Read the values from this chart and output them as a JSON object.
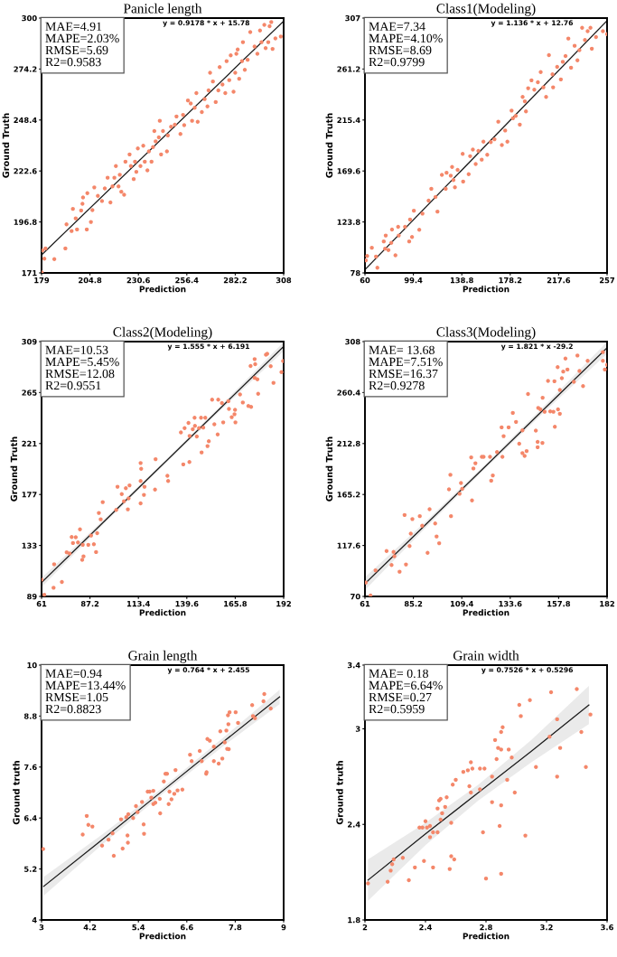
{
  "chart_data": [
    {
      "type": "scatter",
      "title": "Panicle length",
      "xlabel": "Prediction",
      "ylabel": "Ground Truth",
      "marker": "circle",
      "xlim": [
        179,
        308
      ],
      "xticks": [
        179,
        204.8,
        230.6,
        256.4,
        282.2,
        308
      ],
      "ylim": [
        171,
        300
      ],
      "yticks": [
        171,
        196.8,
        222.6,
        248.4,
        274.2,
        300
      ],
      "annotations": [
        "MAE=4.91\nMAPE=2.03%\nRMSE=5.69\nR2=0.9583",
        "y = 0.9178 * x + 15.78"
      ],
      "series": [
        {
          "type": "scatter",
          "color": "#f4876a",
          "x": [
            179.1,
            179.4,
            180.5,
            181.1,
            185.8,
            191.7,
            192.3,
            195,
            195.7,
            197.2,
            197.9,
            200.1,
            200.8,
            201.1,
            203.1,
            203.4,
            205.3,
            206.1,
            207.1,
            209,
            211.2,
            212.7,
            214.2,
            215.7,
            216.8,
            217.8,
            218.6,
            220,
            220.7,
            221.5,
            223,
            223.7,
            225.9,
            226.6,
            228.1,
            228.8,
            229.5,
            230.3,
            231.7,
            233.2,
            234,
            235.4,
            236.2,
            237.6,
            238.4,
            239.1,
            239.8,
            241.5,
            242,
            242.7,
            243.7,
            245.8,
            246.3,
            248,
            250,
            250.9,
            253,
            254.4,
            255,
            257,
            258.5,
            259.2,
            260.6,
            261.5,
            262.2,
            264.4,
            265.9,
            267.4,
            268,
            268.8,
            270.3,
            271.8,
            273.2,
            273.9,
            275.4,
            276.9,
            277.6,
            279,
            279.8,
            281.3,
            282.2,
            282.8,
            283.5,
            284.3,
            285.8,
            286.3,
            287.3,
            288.8,
            290.2,
            292.5,
            294,
            295.4,
            296.2,
            297.7,
            298.4,
            299.8,
            300.5,
            302.1,
            303.6,
            306.5,
            301.4
          ],
          "values": [
            171.3,
            182.4,
            178.2,
            183.4,
            178,
            183.4,
            195.6,
            192.2,
            203.4,
            198.6,
            193,
            202.6,
            206,
            209.2,
            193,
            211.4,
            196.8,
            202.8,
            214.3,
            210,
            207.4,
            213.8,
            219.2,
            206.7,
            214.8,
            219.2,
            225.1,
            214.8,
            220.7,
            212.1,
            210.6,
            227.3,
            231,
            225.1,
            218.5,
            227.3,
            222.2,
            234,
            225.1,
            235.4,
            227.3,
            222.9,
            232.5,
            227.3,
            234.7,
            242.8,
            237.6,
            239.6,
            248,
            231,
            242.8,
            232.5,
            240.6,
            245,
            246,
            250.2,
            241.3,
            251,
            245.8,
            258.3,
            256.8,
            248,
            254.6,
            262,
            247.5,
            252.4,
            259,
            255.3,
            263.4,
            272.3,
            267.9,
            257.5,
            263.4,
            275.2,
            266.4,
            262,
            278.2,
            268.6,
            281.1,
            262.7,
            272.3,
            281.9,
            284.1,
            269.3,
            278.2,
            287.8,
            273.8,
            278.9,
            292.9,
            285.6,
            281.9,
            293.7,
            287.8,
            296.6,
            284.8,
            287.8,
            295.9,
            284.4,
            289.7,
            290.7,
            298
          ]
        },
        {
          "type": "line",
          "color": "#1a1a1a",
          "line_style": "solid",
          "marker": "none",
          "x": [
            179,
            308
          ],
          "values": [
            180.1,
            298.5
          ]
        }
      ]
    },
    {
      "type": "scatter",
      "title": "Class1(Modeling)",
      "xlabel": "Prediction",
      "ylabel": "Ground Truth",
      "marker": "circle",
      "xlim": [
        60,
        257
      ],
      "xticks": [
        60,
        99.4,
        138.8,
        178.2,
        217.6,
        257
      ],
      "ylim": [
        78,
        307
      ],
      "yticks": [
        78,
        123.8,
        169.6,
        215.4,
        261.2,
        307
      ],
      "annotations": [
        "MAE=7.34\nMAPE=4.10%\nRMSE=8.69\nR2=0.9799",
        "y = 1.136 * x + 12.76"
      ],
      "series": [
        {
          "type": "scatter",
          "color": "#f4876a",
          "x": [
            60.7,
            61.8,
            65.6,
            69,
            70.1,
            75.3,
            76.4,
            76.9,
            79.1,
            81.4,
            82,
            84.8,
            87,
            87.5,
            92.6,
            96,
            96.7,
            98.3,
            99.8,
            104.2,
            106.8,
            111.8,
            114,
            117.4,
            119,
            122.6,
            125.7,
            126.4,
            129.8,
            130.9,
            132,
            133.2,
            135.4,
            139.5,
            139.9,
            144.4,
            145.6,
            147.8,
            150.1,
            152.3,
            155,
            156.4,
            159.5,
            162.4,
            165.4,
            168.5,
            171.4,
            174.1,
            175.9,
            179.3,
            180.4,
            182.7,
            186,
            188.3,
            190.1,
            191,
            192.8,
            195.5,
            197.8,
            200.7,
            203,
            205.2,
            207.4,
            209.7,
            212.6,
            213.1,
            216.4,
            219.4,
            221,
            223.2,
            225.5,
            227.7,
            230.6,
            232.9,
            234.5,
            236.7,
            239,
            241.2,
            243.5,
            244.6,
            248,
            253.6,
            257
          ],
          "values": [
            89.3,
            93.2,
            100.6,
            92.7,
            82.7,
            106.3,
            99.8,
            111.6,
            98.5,
            105,
            117,
            93.8,
            119.4,
            111.6,
            119.4,
            106.3,
            126,
            110.3,
            133.9,
            116.8,
            131.3,
            143,
            153.6,
            146.2,
            133.1,
            166.1,
            153.6,
            168,
            165.4,
            173.2,
            161.4,
            154.9,
            170.6,
            185,
            160.1,
            166.7,
            182.9,
            188.9,
            175.9,
            187.6,
            179.8,
            196,
            184.2,
            195.5,
            198.1,
            213.9,
            192.9,
            206,
            196,
            223.9,
            217,
            219.1,
            211.3,
            236.2,
            232.2,
            223.1,
            244,
            251.1,
            242.7,
            249.3,
            258.5,
            244.8,
            236.2,
            273.7,
            256.4,
            244.8,
            263.2,
            251.9,
            267.7,
            272.9,
            288.6,
            262.4,
            282.1,
            269,
            278.2,
            298.3,
            287.3,
            295.2,
            298.3,
            279.5,
            290,
            295.2,
            292.6
          ]
        },
        {
          "type": "line",
          "color": "#1a1a1a",
          "line_style": "solid",
          "marker": "none",
          "x": [
            60,
            257
          ],
          "values": [
            80.9,
            304.7
          ]
        }
      ]
    },
    {
      "type": "scatter",
      "title": "Class2(Modeling)",
      "xlabel": "Prediction",
      "ylabel": "Ground Truth",
      "marker": "circle",
      "xlim": [
        61,
        192
      ],
      "xticks": [
        61,
        87.2,
        113.4,
        139.6,
        165.8,
        192
      ],
      "ylim": [
        89,
        309
      ],
      "yticks": [
        89,
        133,
        177,
        221,
        265,
        309
      ],
      "annotations": [
        "MAE=10.53\nMAPE=5.45%\nRMSE=12.08\nR2=0.9551",
        "y = 1.555 * x + 6.191"
      ],
      "series": [
        {
          "type": "scatter",
          "color": "#f4876a",
          "x": [
            61,
            62.5,
            67.5,
            67.8,
            72,
            74.6,
            76.2,
            77.3,
            78,
            79.5,
            80.7,
            81.8,
            83,
            83.7,
            83.3,
            86.3,
            87.8,
            89.3,
            90.5,
            91.1,
            92,
            93,
            94.1,
            101.4,
            102.1,
            104.4,
            105.6,
            106.6,
            107.7,
            108.1,
            108.6,
            114.6,
            114.9,
            114.6,
            114.6,
            116.4,
            116.7,
            122.7,
            122.4,
            129.1,
            129.5,
            136.4,
            137.7,
            138.4,
            140.5,
            141,
            141.1,
            142.8,
            143.8,
            144,
            145,
            146.2,
            147.3,
            147.6,
            148.5,
            149.6,
            150.8,
            151.5,
            153.3,
            154.5,
            156.3,
            156.6,
            158.6,
            159.3,
            162.1,
            162.4,
            163.9,
            165.4,
            165.7,
            165.9,
            168.4,
            169.9,
            172.9,
            174.4,
            174.1,
            176.3,
            176.6,
            176.3,
            177.8,
            178.2,
            182.4,
            183.1,
            185,
            186.5,
            190.8,
            191.7
          ],
          "values": [
            103.5,
            90.5,
            96.5,
            116.8,
            101.5,
            127.1,
            126.1,
            140.3,
            135.1,
            140.1,
            135.6,
            146.9,
            120.6,
            123.6,
            133.6,
            133.6,
            141.6,
            134.1,
            127.3,
            143.6,
            161.1,
            155.6,
            170.4,
            163.7,
            183.7,
            177.4,
            171.2,
            182.4,
            164.2,
            173.7,
            184.9,
            204.2,
            199.2,
            188.7,
            169.4,
            176.7,
            183.7,
            207.5,
            181.2,
            193.2,
            188.7,
            230.6,
            203,
            234.3,
            238.8,
            205,
            227.6,
            233.3,
            243.3,
            236.3,
            227.1,
            234.3,
            243.3,
            213.3,
            234.8,
            243.3,
            218.8,
            223,
            258.9,
            237.6,
            228.8,
            258.9,
            255.9,
            239.3,
            257.6,
            250.9,
            243.8,
            246.3,
            250.1,
            239.3,
            263.4,
            256.4,
            253.4,
            252.6,
            287.9,
            293.9,
            289.5,
            277.7,
            276.4,
            263.9,
            297.7,
            298.5,
            287.7,
            273.4,
            282.7,
            292.2
          ]
        },
        {
          "type": "line",
          "color": "#1a1a1a",
          "line_style": "solid",
          "marker": "none",
          "x": [
            61,
            94,
            126,
            159,
            192
          ],
          "values": [
            101,
            152.4,
            202.1,
            253.4,
            304.8
          ],
          "lower": [
            97.0,
            150.4,
            200.6,
            251.4,
            300.8
          ],
          "upper": [
            105.0,
            154.4,
            203.6,
            255.4,
            308.7
          ]
        }
      ]
    },
    {
      "type": "scatter",
      "title": "Class3(Modeling)",
      "xlabel": "Prediction",
      "ylabel": "Ground Truth",
      "marker": "circle",
      "xlim": [
        61,
        182
      ],
      "xticks": [
        61,
        85.2,
        109.4,
        133.6,
        157.8,
        182
      ],
      "ylim": [
        70,
        308
      ],
      "yticks": [
        70,
        117.6,
        165.2,
        212.8,
        260.4,
        308
      ],
      "annotations": [
        "MAE= 13.68\nMAPE=7.51%\nRMSE=16.37\nR2=0.9278",
        "y = 1.821 * x -29.2"
      ],
      "series": [
        {
          "type": "scatter",
          "color": "#f4876a",
          "x": [
            61.4,
            63.8,
            66.3,
            71.8,
            74.3,
            75.3,
            75.7,
            78.3,
            80.8,
            81.5,
            83.3,
            83.9,
            84.7,
            88.4,
            89.6,
            92.3,
            93.3,
            96.1,
            96.8,
            98.1,
            103,
            103.7,
            104,
            108.3,
            109,
            109.6,
            114.5,
            114.1,
            115.2,
            116.2,
            119.4,
            120.3,
            123.5,
            124.1,
            124.9,
            127,
            129.3,
            129.7,
            130.3,
            132.8,
            134.9,
            136.5,
            138.1,
            139.7,
            139.7,
            140.8,
            141.8,
            142.5,
            146.4,
            147.3,
            147.3,
            147.6,
            148.7,
            149.7,
            149.8,
            150.8,
            152.5,
            153.6,
            155.2,
            155.7,
            155.9,
            157.5,
            157.3,
            158.4,
            158.4,
            159.4,
            160.1,
            161.2,
            162.2,
            165.4,
            167.2,
            168.2,
            170,
            172.3,
            179.9,
            179.9,
            180.9,
            182
          ],
          "values": [
            83,
            70.8,
            94.4,
            112.4,
            99.3,
            111.6,
            107.5,
            93.1,
            146.1,
            99.9,
            117,
            128.7,
            142.3,
            145,
            136,
            110.7,
            151.5,
            138.2,
            126,
            119.7,
            170,
            183.6,
            145,
            165.9,
            175.9,
            170.5,
            159.7,
            199.9,
            189.5,
            194.4,
            200.4,
            200.4,
            200.4,
            178.1,
            183,
            204.8,
            227.9,
            200.4,
            219.7,
            227.9,
            241.4,
            233,
            212.6,
            203.9,
            225.1,
            201.2,
            205.8,
            259.1,
            224.9,
            214.3,
            209.4,
            246.1,
            244.7,
            213.4,
            255.6,
            242.5,
            271.3,
            242.8,
            242.5,
            271,
            228.4,
            244.7,
            284.1,
            240.6,
            262.9,
            273.8,
            280,
            292.2,
            281.9,
            270.5,
            295,
            280.6,
            266.4,
            290.1,
            298.2,
            290.1,
            281.9,
            286.3
          ]
        },
        {
          "type": "line",
          "color": "#1a1a1a",
          "line_style": "solid",
          "marker": "none",
          "x": [
            61,
            91,
            121,
            152,
            182
          ],
          "values": [
            81.9,
            136.5,
            191.1,
            247.6,
            302.2
          ],
          "lower": [
            75.9,
            133.5,
            189.1,
            244.6,
            296.7
          ],
          "upper": [
            87.9,
            139.5,
            193.1,
            250.6,
            307.7
          ]
        }
      ]
    },
    {
      "type": "scatter",
      "title": "Grain length",
      "xlabel": "Prediction",
      "ylabel": "Ground truth",
      "marker": "circle",
      "xlim": [
        3,
        9
      ],
      "xticks": [
        3,
        4.2,
        5.4,
        6.6,
        7.8,
        9
      ],
      "ylim": [
        4,
        10
      ],
      "yticks": [
        4,
        5.2,
        6.4,
        7.6,
        8.8,
        10
      ],
      "annotations": [
        "MAE=0.94\nMAPE=13.44%\nRMSE=1.05\nR2=0.8823",
        "y = 0.764 * x + 2.455"
      ],
      "series": [
        {
          "type": "scatter",
          "color": "#f4876a",
          "x": [
            3.04,
            4.02,
            4.12,
            4.16,
            4.26,
            4.5,
            4.66,
            4.76,
            4.79,
            4.97,
            5.01,
            5.1,
            5.13,
            5.14,
            5.15,
            5.27,
            5.34,
            5.38,
            5.49,
            5.53,
            5.54,
            5.63,
            5.68,
            5.72,
            5.77,
            5.77,
            5.82,
            5.93,
            5.94,
            6.03,
            6.07,
            6.11,
            6.15,
            6.17,
            6.22,
            6.29,
            6.32,
            6.37,
            6.49,
            6.68,
            6.72,
            6.92,
            6.97,
            7.08,
            7.09,
            7.11,
            7.17,
            7.27,
            7.27,
            7.39,
            7.43,
            7.48,
            7.54,
            7.58,
            7.6,
            7.62,
            7.63,
            7.64,
            7.66,
            7.81,
            7.87,
            8.22,
            8.24,
            8.29,
            8.52,
            8.5,
            8.68
          ],
          "values": [
            5.67,
            6.01,
            6.45,
            6.24,
            6.2,
            5.75,
            5.89,
            6.04,
            5.51,
            6.37,
            5.68,
            6.42,
            5.99,
            5.82,
            6.49,
            6.4,
            6.68,
            6.54,
            6.78,
            6.25,
            6.03,
            7.02,
            7.02,
            6.88,
            7.04,
            6.73,
            6.76,
            6.85,
            6.51,
            7.26,
            7.44,
            7.44,
            6.73,
            7.02,
            6.84,
            6.97,
            7.53,
            7.05,
            7.07,
            7.89,
            7.74,
            7.98,
            7.74,
            7.44,
            7.48,
            8.26,
            8.22,
            8.08,
            7.74,
            7.68,
            8.44,
            7.8,
            8.18,
            8.46,
            8.03,
            8.82,
            8.61,
            8.02,
            8.89,
            8.89,
            8.64,
            9.06,
            8.8,
            8.75,
            9.32,
            9.15,
            8.98
          ]
        },
        {
          "type": "line",
          "color": "#1a1a1a",
          "line_style": "solid",
          "marker": "none",
          "x": [
            3.05,
            4.5,
            6,
            7.5,
            8.9
          ],
          "values": [
            4.79,
            5.89,
            7.04,
            8.19,
            9.25
          ],
          "lower": [
            4.57,
            5.77,
            6.97,
            8.09,
            9.08
          ],
          "upper": [
            5.01,
            6.01,
            7.11,
            8.29,
            9.42
          ]
        }
      ]
    },
    {
      "type": "scatter",
      "title": "Grain width",
      "xlabel": "Prediction",
      "ylabel": "Ground truth",
      "marker": "circle",
      "xlim": [
        2,
        3.6
      ],
      "xticks": [
        2,
        2.4,
        2.8,
        3.2,
        3.6
      ],
      "ylim": [
        1.8,
        3.4
      ],
      "yticks": [
        1.8,
        2.4,
        3,
        3.4
      ],
      "annotations": [
        "MAE= 0.18\nMAPE=6.64%\nRMSE=0.27\nR2=0.5959",
        "y = 0.7526 * x + 0.5296"
      ],
      "series": [
        {
          "type": "scatter",
          "color": "#f4876a",
          "x": [
            2.02,
            2.15,
            2.17,
            2.18,
            2.19,
            2.25,
            2.29,
            2.33,
            2.36,
            2.38,
            2.39,
            2.4,
            2.41,
            2.43,
            2.43,
            2.45,
            2.45,
            2.48,
            2.48,
            2.49,
            2.5,
            2.5,
            2.51,
            2.53,
            2.54,
            2.56,
            2.57,
            2.57,
            2.58,
            2.59,
            2.6,
            2.65,
            2.68,
            2.69,
            2.7,
            2.7,
            2.71,
            2.76,
            2.76,
            2.78,
            2.79,
            2.8,
            2.84,
            2.84,
            2.86,
            2.87,
            2.88,
            2.89,
            2.9,
            2.9,
            2.9,
            2.9,
            2.91,
            2.94,
            2.95,
            2.97,
            2.99,
            3.02,
            3.03,
            3.06,
            3.09,
            3.13,
            3.22,
            3.23,
            3.27,
            3.27,
            3.29,
            3.4,
            3.43,
            3.46,
            3.49
          ],
          "values": [
            2.03,
            2.04,
            2.11,
            2.15,
            2.18,
            2.19,
            2.05,
            2.13,
            2.38,
            2.38,
            2.17,
            2.42,
            2.38,
            2.39,
            2.32,
            2.35,
            2.13,
            2.35,
            2.5,
            2.55,
            2.56,
            2.43,
            2.47,
            2.51,
            2.57,
            2.12,
            2.2,
            2.41,
            2.65,
            2.18,
            2.68,
            2.73,
            2.74,
            2.64,
            2.79,
            2.6,
            2.75,
            2.62,
            2.75,
            2.35,
            2.75,
            2.06,
            2.7,
            2.54,
            2.93,
            2.81,
            2.88,
            2.39,
            2.52,
            2.09,
            2.98,
            2.87,
            3.01,
            2.68,
            2.87,
            2.82,
            2.6,
            3.15,
            3.08,
            2.33,
            3.18,
            2.76,
            2.95,
            3.23,
            3.06,
            2.7,
            2.88,
            3.25,
            2.98,
            2.76,
            3.09
          ]
        },
        {
          "type": "line",
          "color": "#1a1a1a",
          "line_style": "solid",
          "marker": "none",
          "x": [
            2.02,
            2.4,
            2.75,
            3.1,
            3.48
          ],
          "values": [
            2.05,
            2.34,
            2.6,
            2.86,
            3.15
          ],
          "lower": [
            1.92,
            2.27,
            2.55,
            2.79,
            3.03
          ],
          "upper": [
            2.18,
            2.41,
            2.65,
            2.93,
            3.27
          ]
        }
      ]
    }
  ]
}
